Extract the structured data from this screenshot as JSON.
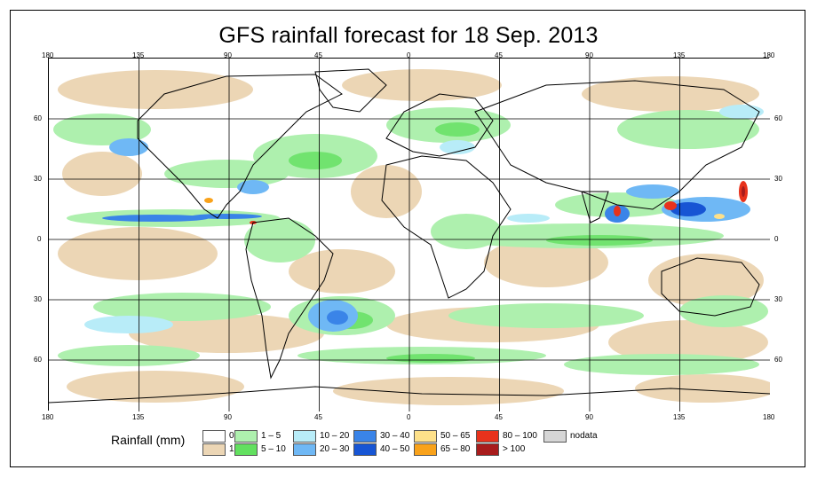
{
  "title": "GFS rainfall forecast for 18 Sep. 2013",
  "axes": {
    "top_lon": [
      "180",
      "135",
      "90",
      "45",
      "0",
      "45",
      "90",
      "135",
      "180"
    ],
    "bottom_lon": [
      "180",
      "135",
      "90",
      "45",
      "0",
      "45",
      "90",
      "135",
      "180"
    ],
    "left_lat": [
      "60",
      "30",
      "0",
      "30",
      "60"
    ],
    "right_lat": [
      "60",
      "30",
      "0",
      "30",
      "60"
    ]
  },
  "legend": {
    "title": "Rainfall (mm)",
    "items": [
      {
        "label": "0",
        "color": "#ffffff"
      },
      {
        "label": "1",
        "color": "#ecd6b5"
      },
      {
        "label": "1 – 5",
        "color": "#aef0ae"
      },
      {
        "label": "5 – 10",
        "color": "#62e05f"
      },
      {
        "label": "10 – 20",
        "color": "#b8ecf8"
      },
      {
        "label": "20 – 30",
        "color": "#6fb8f5"
      },
      {
        "label": "30 – 40",
        "color": "#3a84e8"
      },
      {
        "label": "40 – 50",
        "color": "#1755d4"
      },
      {
        "label": "50 – 65",
        "color": "#fde08a"
      },
      {
        "label": "65 – 80",
        "color": "#f9a21a"
      },
      {
        "label": "80 – 100",
        "color": "#e8321c"
      },
      {
        "label": "> 100",
        "color": "#a81c1c"
      },
      {
        "label": "nodata",
        "color": "#d6d6d6"
      }
    ]
  }
}
